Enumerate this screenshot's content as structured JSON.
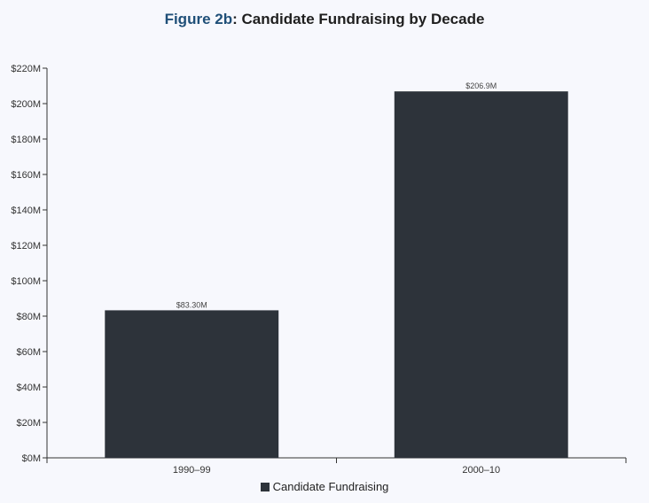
{
  "colors": {
    "bar": "#2d333a",
    "figure_accent": "#1f4f78",
    "background": "#f7f8fd"
  },
  "chart_data": {
    "type": "bar",
    "title_prefix": "Figure 2b",
    "title_rest": ": Candidate Fundraising by Decade",
    "categories": [
      "1990–99",
      "2000–10"
    ],
    "series": [
      {
        "name": "Candidate Fundraising",
        "values": [
          83.3,
          206.9
        ],
        "value_labels": [
          "$83.30M",
          "$206.9M"
        ]
      }
    ],
    "ylim": [
      0,
      220
    ],
    "yticks": [
      0,
      20,
      40,
      60,
      80,
      100,
      120,
      140,
      160,
      180,
      200,
      220
    ],
    "ytick_labels": [
      "$0M",
      "$20M",
      "$40M",
      "$60M",
      "$80M",
      "$100M",
      "$120M",
      "$140M",
      "$160M",
      "$180M",
      "$200M",
      "$220M"
    ],
    "grid": false,
    "legend_position": "bottom-center"
  }
}
